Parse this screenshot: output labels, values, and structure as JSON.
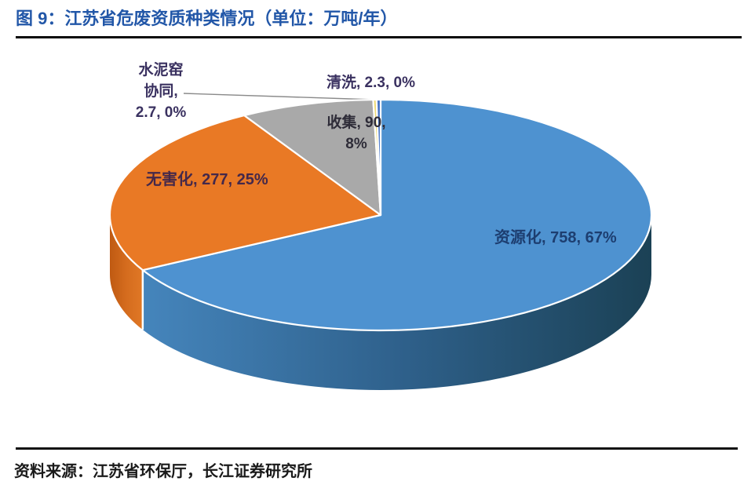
{
  "header": {
    "title": "图 9：江苏省危废资质种类情况（单位：万吨/年）"
  },
  "footer": {
    "source": "资料来源：江苏省环保厅，长江证券研究所"
  },
  "chart_data": {
    "type": "pie",
    "style": "3d",
    "title": "江苏省危废资质种类情况",
    "unit": "万吨/年",
    "total": 1130,
    "label_format": "name, value, percent",
    "legend": "none",
    "slices": [
      {
        "name": "资源化",
        "value": 758,
        "pct": "67%",
        "label": "资源化, 758, 67%",
        "label_color": "#1D3E70",
        "color": "#4E92D0",
        "side": [
          "#4585BC",
          "#2F618C",
          "#1B4155"
        ]
      },
      {
        "name": "无害化",
        "value": 277,
        "pct": "25%",
        "label": "无害化, 277, 25%",
        "label_color": "#44284A",
        "color": "#E97925",
        "side": [
          "#BF5A12",
          "#D56C1E",
          "#E07826"
        ]
      },
      {
        "name": "收集",
        "value": 90,
        "pct": "8%",
        "label_lines": [
          "收集, 90,",
          "8%"
        ],
        "label_color": "#2E2C38",
        "color": "#A9A9A9",
        "side": [
          "#8F8F8F",
          "#8F8F8F",
          "#8F8F8F"
        ]
      },
      {
        "name": "清洗",
        "value": 2.3,
        "pct": "0%",
        "label": "清洗, 2.3, 0%",
        "label_color": "#3A3160",
        "color": "#EFDB76",
        "side": [
          "#C9B44F",
          "#C9B44F",
          "#C9B44F"
        ]
      },
      {
        "name": "水泥窑协同",
        "value": 2.7,
        "pct": "0%",
        "label_lines": [
          "水泥窑",
          "协同,",
          "2.7, 0%"
        ],
        "label_color": "#3A3160",
        "color": "#4472C4",
        "side": [
          "#2F5496",
          "#2F5496",
          "#2F5496"
        ]
      }
    ]
  }
}
